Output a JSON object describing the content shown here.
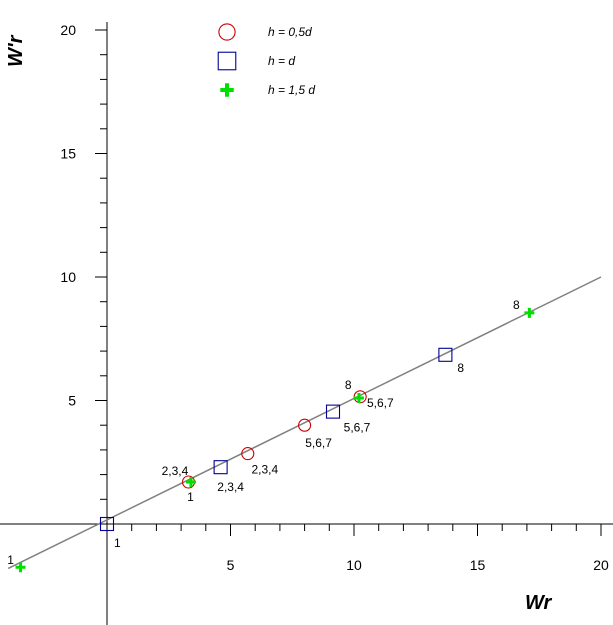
{
  "chart_data": {
    "type": "scatter",
    "xlabel": "Wr",
    "ylabel": "W'r",
    "xlim": [
      -4,
      20
    ],
    "ylim": [
      -4,
      20
    ],
    "x_ticks": [
      5,
      10,
      15,
      20
    ],
    "y_ticks": [
      5,
      10,
      15,
      20
    ],
    "x_minor_step": 1,
    "y_minor_step": 1,
    "grid": false,
    "legend_position": "top",
    "fit_line": {
      "x": [
        -4,
        20
      ],
      "y": [
        -1.8,
        10.0
      ],
      "color": "#808080"
    },
    "series": [
      {
        "name": "h = 0,5d",
        "marker": "circle",
        "color": "#cc0000",
        "points": [
          {
            "x": 3.3,
            "y": 1.7,
            "label": "1"
          },
          {
            "x": 5.7,
            "y": 2.85,
            "label": "2,3,4"
          },
          {
            "x": 8.0,
            "y": 4.0,
            "label": "5,6,7"
          },
          {
            "x": 10.25,
            "y": 5.15,
            "label": "8"
          }
        ]
      },
      {
        "name": "h = d",
        "marker": "square",
        "color": "#000099",
        "points": [
          {
            "x": 0.0,
            "y": 0.0,
            "label": "1"
          },
          {
            "x": 4.6,
            "y": 2.3,
            "label": "2,3,4"
          },
          {
            "x": 9.15,
            "y": 4.55,
            "label": "5,6,7"
          },
          {
            "x": 13.7,
            "y": 6.85,
            "label": "8"
          }
        ]
      },
      {
        "name": "h = 1,5 d",
        "marker": "cross",
        "color": "#00e000",
        "points": [
          {
            "x": -3.5,
            "y": -1.75,
            "label": "1"
          },
          {
            "x": 3.4,
            "y": 1.7,
            "label": "2,3,4"
          },
          {
            "x": 10.2,
            "y": 5.1,
            "label": "5,6,7"
          },
          {
            "x": 17.1,
            "y": 8.55,
            "label": "8"
          }
        ]
      }
    ]
  }
}
